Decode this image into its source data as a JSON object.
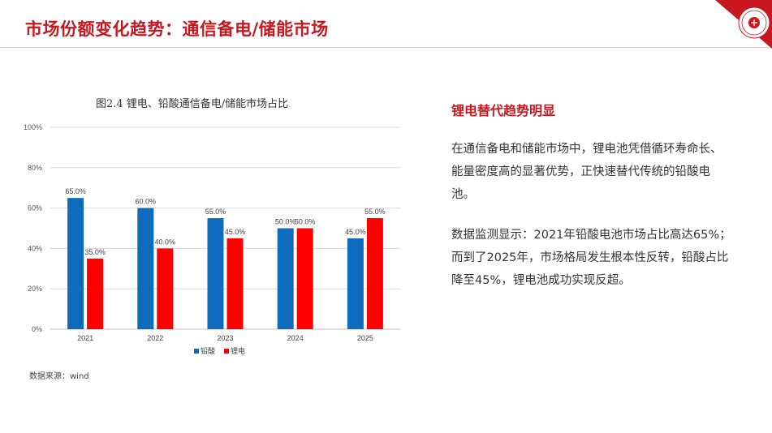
{
  "header": {
    "title": "市场份额变化趋势：通信备电/储能市场",
    "accent_color": "#c8171e"
  },
  "chart": {
    "caption": "图2.4 锂电、铅酸通信备电/储能市场占比",
    "source": "数据来源：wind"
  },
  "chart_data": {
    "type": "bar",
    "title": "图2.4 锂电、铅酸通信备电/储能市场占比",
    "categories": [
      "2021",
      "2022",
      "2023",
      "2024",
      "2025"
    ],
    "series": [
      {
        "name": "铅酸",
        "values": [
          65.0,
          60.0,
          55.0,
          50.0,
          45.0
        ],
        "labels": [
          "65.0%",
          "60.0%",
          "55.0%",
          "50.0%",
          "45.0%"
        ],
        "color": "#0f6cbd"
      },
      {
        "name": "锂电",
        "values": [
          35.0,
          40.0,
          45.0,
          50.0,
          55.0
        ],
        "labels": [
          "35.0%",
          "40.0%",
          "45.0%",
          "50.0%",
          "55.0%"
        ],
        "color": "#ff0000"
      }
    ],
    "yticks": [
      "0%",
      "20%",
      "40%",
      "60%",
      "80%",
      "100%"
    ],
    "ylim": [
      0,
      100
    ],
    "grid": true,
    "legend_position": "bottom"
  },
  "side": {
    "heading": "锂电替代趋势明显",
    "paragraph1": "在通信备电和储能市场中，锂电池凭借循环寿命长、能量密度高的显著优势，正快速替代传统的铅酸电池。",
    "paragraph2": "数据监测显示：2021年铅酸电池市场占比高达65%；而到了2025年，市场格局发生根本性反转，铅酸占比降至45%，锂电池成功实现反超。"
  }
}
